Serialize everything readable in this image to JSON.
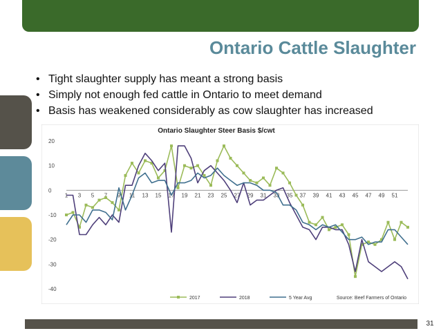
{
  "slide": {
    "title": "Ontario Cattle Slaughter",
    "bullets": [
      "Tight slaughter supply has meant a strong basis",
      "Simply not enough fed cattle in Ontario to meet demand",
      "Basis has weakened considerably as cow slaughter has increased"
    ],
    "page_number": "31",
    "colors": {
      "banner": "#3a6a2a",
      "title": "#5a8a9a",
      "tab_dark": "#55524a",
      "tab_blue": "#5d8a9a",
      "tab_yellow": "#e6c15a"
    }
  },
  "chart_data": {
    "type": "line",
    "title": "Ontario Slaughter Steer Basis   $/cwt",
    "source": "Source: Beef Farmers of Ontario",
    "xlabel": "",
    "ylabel": "",
    "ylim": [
      -40,
      20
    ],
    "y_ticks": [
      20,
      10,
      0,
      -10,
      -20,
      -30,
      -40
    ],
    "x_tick_labels": [
      "1",
      "3",
      "5",
      "7",
      "9",
      "11",
      "13",
      "15",
      "17",
      "19",
      "21",
      "23",
      "25",
      "27",
      "29",
      "31",
      "33",
      "35",
      "37",
      "39",
      "41",
      "43",
      "45",
      "47",
      "49",
      "51"
    ],
    "x": [
      1,
      2,
      3,
      4,
      5,
      6,
      7,
      8,
      9,
      10,
      11,
      12,
      13,
      14,
      15,
      16,
      17,
      18,
      19,
      20,
      21,
      22,
      23,
      24,
      25,
      26,
      27,
      28,
      29,
      30,
      31,
      32,
      33,
      34,
      35,
      36,
      37,
      38,
      39,
      40,
      41,
      42,
      43,
      44,
      45,
      46,
      47,
      48,
      49,
      50,
      51,
      52,
      53
    ],
    "legend_position": "bottom",
    "series": [
      {
        "name": "2017",
        "color": "#9bbb59",
        "marker": "square",
        "values": [
          -10,
          -9,
          -15,
          -6,
          -7,
          -4,
          -3,
          -5,
          -8,
          6,
          11,
          7,
          12,
          11,
          5,
          8,
          18,
          1,
          10,
          9,
          10,
          6,
          2,
          12,
          18,
          13,
          10,
          7,
          4,
          3,
          5,
          2,
          9,
          7,
          3,
          -2,
          -6,
          -13,
          -14,
          -11,
          -16,
          -15,
          -14,
          -18,
          -35,
          -22,
          -21,
          -22,
          -20,
          -13,
          -20,
          -13,
          -15
        ]
      },
      {
        "name": "2018",
        "color": "#4e3f7a",
        "marker": "none",
        "values": [
          -2,
          -2,
          -18,
          -18,
          -14,
          -11,
          -14,
          -10,
          -13,
          2,
          2,
          10,
          15,
          12,
          8,
          11,
          -17,
          18,
          18,
          13,
          3,
          8,
          10,
          7,
          4,
          0,
          -5,
          3,
          -6,
          -4,
          -4,
          -2,
          0,
          1,
          -5,
          -10,
          -15,
          -16,
          -20,
          -15,
          -15,
          -16,
          -16,
          -22,
          -33,
          -20,
          -29,
          -31,
          -33,
          -31,
          -29,
          -31,
          -36
        ]
      },
      {
        "name": "5 Year Avg",
        "color": "#3f6f8e",
        "marker": "none",
        "values": [
          -14,
          -10,
          -10,
          -13,
          -8,
          -8,
          -9,
          -12,
          1,
          -8,
          -2,
          5,
          7,
          3,
          4,
          4,
          -2,
          3,
          3,
          4,
          7,
          5,
          6,
          9,
          6,
          4,
          2,
          3,
          3,
          2,
          0,
          0,
          -1,
          -6,
          -6,
          -8,
          -13,
          -14,
          -16,
          -14,
          -15,
          -14,
          -17,
          -20,
          -20,
          -19,
          -22,
          -21,
          -21,
          -16,
          -16,
          -19,
          -22
        ]
      }
    ]
  }
}
